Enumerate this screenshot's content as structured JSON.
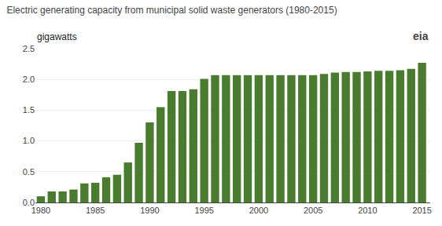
{
  "chart_data": {
    "type": "bar",
    "title": "Electric generating capacity from municipal solid waste generators (1980-2015)",
    "ylabel": "gigawatts",
    "annotations": [
      "eia"
    ],
    "x": [
      1980,
      1981,
      1982,
      1983,
      1984,
      1985,
      1986,
      1987,
      1988,
      1989,
      1990,
      1991,
      1992,
      1993,
      1994,
      1995,
      1996,
      1997,
      1998,
      1999,
      2000,
      2001,
      2002,
      2003,
      2004,
      2005,
      2006,
      2007,
      2008,
      2009,
      2010,
      2011,
      2012,
      2013,
      2014,
      2015
    ],
    "values": [
      0.1,
      0.18,
      0.18,
      0.21,
      0.31,
      0.32,
      0.41,
      0.45,
      0.65,
      0.97,
      1.3,
      1.55,
      1.81,
      1.81,
      1.84,
      2.01,
      2.07,
      2.07,
      2.07,
      2.07,
      2.07,
      2.07,
      2.07,
      2.07,
      2.07,
      2.07,
      2.09,
      2.11,
      2.12,
      2.12,
      2.13,
      2.14,
      2.14,
      2.15,
      2.17,
      2.27
    ],
    "color": "#4a7c2f",
    "xlim": [
      1979.5,
      2015.75
    ],
    "xticks": [
      1980,
      1985,
      1990,
      1995,
      2000,
      2005,
      2010,
      2015
    ],
    "ylim": [
      0,
      2.5
    ],
    "yticks": [
      {
        "value": 0,
        "label": "0.0"
      },
      0.5,
      {
        "value": 1,
        "label": "1.0"
      },
      1.5,
      {
        "value": 2,
        "label": "2.0"
      },
      2.5
    ],
    "grid": true
  }
}
